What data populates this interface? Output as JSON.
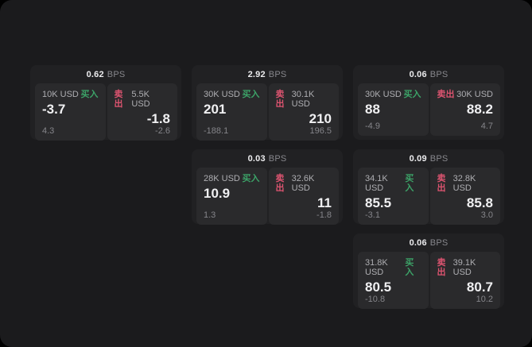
{
  "colors": {
    "buy": "#3ca368",
    "sell": "#dd5470",
    "surface": "#1b1b1d",
    "card": "#212123",
    "panel": "#2a2a2c"
  },
  "labels": {
    "bps": "BPS",
    "buy": "买入",
    "sell": "卖出"
  },
  "cards": [
    {
      "bps": "0.62",
      "buy": {
        "amount": "10K USD",
        "price": "-3.7",
        "delta": "4.3"
      },
      "sell": {
        "amount": "5.5K USD",
        "price": "-1.8",
        "delta": "-2.6"
      }
    },
    {
      "bps": "2.92",
      "buy": {
        "amount": "30K USD",
        "price": "201",
        "delta": "-188.1"
      },
      "sell": {
        "amount": "30.1K USD",
        "price": "210",
        "delta": "196.5"
      }
    },
    {
      "bps": "0.06",
      "buy": {
        "amount": "30K USD",
        "price": "88",
        "delta": "-4.9"
      },
      "sell": {
        "amount": "30K USD",
        "price": "88.2",
        "delta": "4.7"
      }
    },
    {
      "bps": "0.03",
      "buy": {
        "amount": "28K USD",
        "price": "10.9",
        "delta": "1.3"
      },
      "sell": {
        "amount": "32.6K USD",
        "price": "11",
        "delta": "-1.8"
      }
    },
    {
      "bps": "0.09",
      "buy": {
        "amount": "34.1K USD",
        "price": "85.5",
        "delta": "-3.1"
      },
      "sell": {
        "amount": "32.8K USD",
        "price": "85.8",
        "delta": "3.0"
      }
    },
    {
      "bps": "0.06",
      "buy": {
        "amount": "31.8K USD",
        "price": "80.5",
        "delta": "-10.8"
      },
      "sell": {
        "amount": "39.1K USD",
        "price": "80.7",
        "delta": "10.2"
      }
    }
  ]
}
